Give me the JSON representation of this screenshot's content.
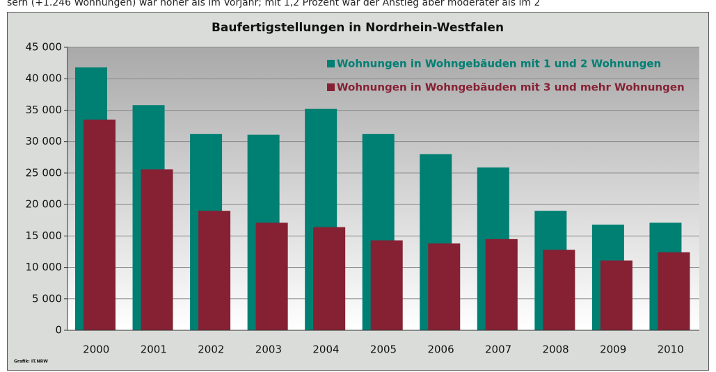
{
  "page_text": "sern (+1.246 Wohnungen) war höher als im Vorjahr; mit 1,2 Prozent war der Anstieg aber moderater als im 2",
  "chart_data": {
    "type": "bar",
    "title": "Baufertigstellungen in Nordrhein-Westfalen",
    "source": "Grafik: IT.NRW",
    "categories": [
      "2000",
      "2001",
      "2002",
      "2003",
      "2004",
      "2005",
      "2006",
      "2007",
      "2008",
      "2009",
      "2010"
    ],
    "series": [
      {
        "name": "Wohnungen in Wohngebäuden mit 1 und 2 Wohnungen",
        "color": "#007f73",
        "values": [
          41800,
          35800,
          31200,
          31100,
          35200,
          31200,
          28000,
          25900,
          19000,
          16800,
          17100
        ]
      },
      {
        "name": "Wohnungen in Wohngebäuden mit 3 und mehr Wohnungen",
        "color": "#862033",
        "values": [
          33500,
          25600,
          19000,
          17100,
          16400,
          14300,
          13800,
          14500,
          12800,
          11100,
          12400
        ]
      }
    ],
    "ylim": [
      0,
      45000
    ],
    "yticks": [
      0,
      {
        "value": 5000,
        "label": "5 000"
      },
      {
        "value": 10000,
        "label": "10 000"
      },
      {
        "value": 15000,
        "label": "15 000"
      },
      {
        "value": 20000,
        "label": "20 000"
      },
      {
        "value": 25000,
        "label": "25 000"
      },
      {
        "value": 30000,
        "label": "30 000"
      },
      {
        "value": 35000,
        "label": "35 000"
      },
      {
        "value": 40000,
        "label": "40 000"
      },
      {
        "value": 45000,
        "label": "45 000"
      }
    ],
    "grid": true,
    "legend": "top-right"
  }
}
